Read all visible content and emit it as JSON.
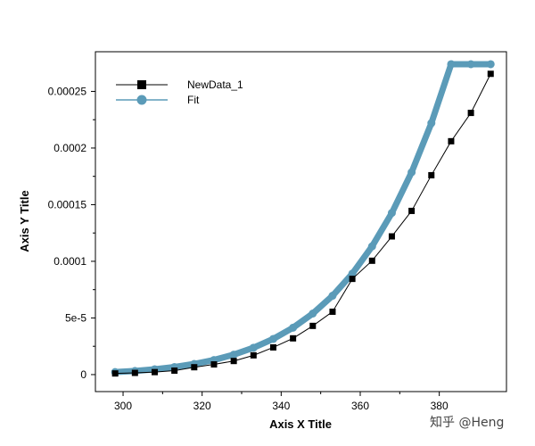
{
  "chart_data": {
    "type": "line",
    "title": "",
    "xlabel": "Axis X Title",
    "ylabel": "Axis Y Title",
    "xlim": [
      293,
      397
    ],
    "ylim": [
      -1.5e-05,
      0.000285
    ],
    "x_ticks": [
      300,
      320,
      340,
      360,
      380
    ],
    "y_ticks": [
      0,
      5e-05,
      0.0001,
      0.00015,
      0.0002,
      0.00025
    ],
    "y_tick_labels": [
      "0",
      "5e-5",
      "0.0001",
      "0.00015",
      "0.0002",
      "0.00025"
    ],
    "grid": false,
    "legend": "top-left",
    "series": [
      {
        "name": "NewData_1",
        "marker": "square",
        "color": "#000000",
        "x": [
          298,
          303,
          308,
          313,
          318,
          323,
          328,
          333,
          338,
          343,
          348,
          353,
          358,
          363,
          368,
          373,
          378,
          383,
          388,
          393
        ],
        "y": [
          1e-06,
          1.5e-06,
          2.2e-06,
          3.5e-06,
          6.5e-06,
          9e-06,
          1.2e-05,
          1.7e-05,
          2.4e-05,
          3.2e-05,
          4.3e-05,
          5.55e-05,
          8.45e-05,
          0.0001005,
          0.000122,
          0.0001445,
          0.000176,
          0.000206,
          0.000231,
          0.0002655
        ]
      },
      {
        "name": "Fit",
        "marker": "circle",
        "color": "#5b9bb8",
        "x": [
          298,
          303,
          308,
          313,
          318,
          323,
          328,
          333,
          338,
          343,
          348,
          353,
          358,
          363,
          368,
          373,
          378,
          383,
          388,
          393
        ],
        "y": [
          2.2e-06,
          3.2e-06,
          4.7e-06,
          6.7e-06,
          9.4e-06,
          1.29e-05,
          1.76e-05,
          2.37e-05,
          3.15e-05,
          4.14e-05,
          5.39e-05,
          6.96e-05,
          8.91e-05,
          0.0001132,
          0.0001427,
          0.0001786,
          0.000222,
          0.000274,
          0.000274,
          0.000274
        ]
      }
    ]
  },
  "watermark": "知乎 @Heng"
}
